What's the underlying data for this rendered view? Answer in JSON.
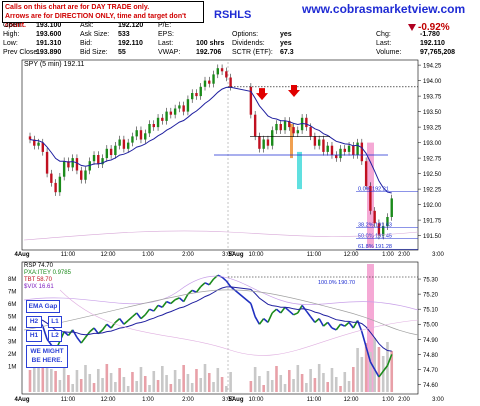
{
  "header": {
    "callout_line1": "Calls on this chart are for DAY TRADE only.",
    "callout_line2": "Arrows are for DIRECTION ONLY, time and target don't count.",
    "ticker": "RSHLS",
    "site": "www.cobrasmarketview.com",
    "quote": [
      {
        "label": "Open:",
        "value": "193.100"
      },
      {
        "label": "High:",
        "value": "193.600"
      },
      {
        "label": "Low:",
        "value": "191.310"
      },
      {
        "label": "Prev Close:",
        "value": "193.890"
      }
    ],
    "quote2": [
      {
        "label": "Ask:",
        "value": "192.120"
      },
      {
        "label": "Ask Size:",
        "value": "533"
      },
      {
        "label": "Bid:",
        "value": "192.110"
      },
      {
        "label": "Bid Size:",
        "value": "55"
      }
    ],
    "quote3": [
      {
        "label": "P/E:",
        "value": ""
      },
      {
        "label": "EPS:",
        "value": ""
      },
      {
        "label": "Last:",
        "value": "100 shrs"
      },
      {
        "label": "VWAP:",
        "value": "192.706"
      }
    ],
    "quote4": [
      {
        "label": "",
        "value": ""
      },
      {
        "label": "Options:",
        "value": "yes"
      },
      {
        "label": "Dividends:",
        "value": "yes"
      },
      {
        "label": "SCTR (ETF):",
        "value": "67.3"
      }
    ],
    "change_pct": "-0.92%",
    "quote5": [
      {
        "label": "Chg:",
        "value": "-1.780"
      },
      {
        "label": "Last:",
        "value": "192.110"
      },
      {
        "label": "Volume:",
        "value": "97,765,208"
      }
    ]
  },
  "colors": {
    "up": "#1a8a1a",
    "down": "#c01020",
    "ma": "#2020a0",
    "annot": "#2a3fd6",
    "arrow": "#e00000",
    "pink": "#f4a0d0",
    "cyan": "#60e0e0",
    "orange": "#f0a050"
  },
  "chart_data": [
    {
      "type": "candlestick",
      "title": "SPY (5 min) 192.11",
      "ylim": [
        191.3,
        194.3
      ],
      "yticks": [
        194.25,
        194.0,
        193.75,
        193.5,
        193.25,
        193.0,
        192.75,
        192.5,
        192.25,
        192.0,
        191.75,
        191.5
      ],
      "ytick_labels": [
        "194.25",
        "194.00",
        "193.75",
        "193.50",
        "193.25",
        "193.00",
        "192.75",
        "192.50",
        "192.25",
        "192.00",
        "191.75",
        "191.50"
      ],
      "xtick_labels": [
        "4Aug",
        "11:00",
        "12:00",
        "1:00",
        "2:00",
        "3:00",
        "5Aug",
        "10:00",
        "11:00",
        "12:00",
        "1:00",
        "2:00",
        "3:00"
      ],
      "close_series": [
        193.05,
        192.95,
        193.0,
        192.85,
        192.5,
        192.35,
        192.2,
        192.45,
        192.7,
        192.6,
        192.75,
        192.55,
        192.4,
        192.55,
        192.7,
        192.8,
        192.65,
        192.75,
        192.9,
        192.8,
        192.95,
        193.05,
        192.9,
        193.0,
        193.1,
        193.2,
        193.05,
        193.15,
        193.3,
        193.25,
        193.4,
        193.35,
        193.5,
        193.45,
        193.55,
        193.6,
        193.5,
        193.7,
        193.8,
        193.75,
        193.9,
        194.0,
        193.95,
        194.1,
        194.2,
        194.15,
        194.05,
        193.9,
        193.45,
        193.1,
        192.9,
        193.05,
        192.95,
        193.2,
        193.3,
        193.2,
        193.35,
        193.25,
        193.15,
        193.2,
        193.4,
        193.25,
        193.1,
        192.95,
        193.05,
        192.85,
        192.95,
        192.8,
        192.75,
        192.9,
        192.85,
        192.95,
        192.8,
        193.0,
        192.7,
        192.3,
        191.9,
        191.7,
        191.5,
        191.65,
        191.8,
        192.1
      ],
      "fib_levels": [
        {
          "label": "0.0% 192.21",
          "value": 192.21
        },
        {
          "label": "38.2% 191.63",
          "value": 191.63
        },
        {
          "label": "50.0% 191.45",
          "value": 191.45
        },
        {
          "label": "61.8% 191.28",
          "value": 191.28
        }
      ],
      "dotted_line": 193.9,
      "support_line": 192.8
    },
    {
      "type": "line",
      "title": "RSP 74.70",
      "series": [
        {
          "name": "PXA:ITEY 0.9785"
        },
        {
          "name": "TBT 58.70"
        },
        {
          "name": "$VIX 16.61"
        }
      ],
      "ylim": [
        74.55,
        75.4
      ],
      "yticks": [
        75.3,
        75.2,
        75.1,
        75.0,
        74.9,
        74.8,
        74.7,
        74.6
      ],
      "ytick_labels": [
        "75.30",
        "75.20",
        "75.10",
        "75.00",
        "74.90",
        "74.80",
        "74.70",
        "74.60"
      ],
      "vol_ticks": [
        "8M",
        "7M",
        "6M",
        "5M",
        "4M",
        "3M",
        "2M",
        "1M"
      ],
      "fib_label": "100.0% 190.70",
      "xtick_labels": [
        "4Aug",
        "11:00",
        "12:00",
        "1:00",
        "2:00",
        "3:00",
        "5Aug",
        "10:00",
        "11:00",
        "12:00",
        "1:00",
        "2:00",
        "3:00"
      ]
    }
  ],
  "annotations": {
    "ema_gap": "EMA Gap",
    "h2": "H2",
    "l1": "L1",
    "h1": "H1",
    "l2": "L2",
    "might1": "WE MIGHT",
    "might2": "BE HERE."
  }
}
